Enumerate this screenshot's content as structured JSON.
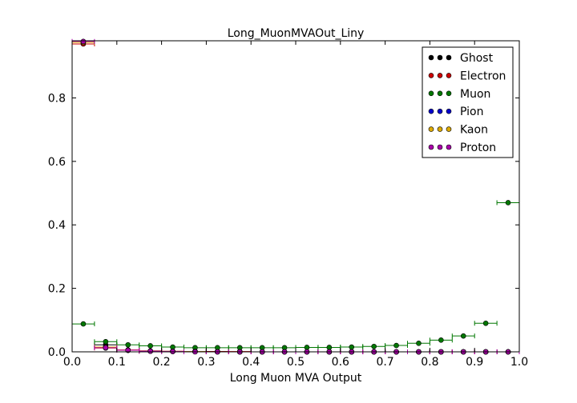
{
  "chart_data": {
    "type": "scatter",
    "title": "Long_MuonMVAOut_Liny",
    "xlabel": "Long Muon MVA Output",
    "ylabel": "",
    "xlim": [
      0.0,
      1.0
    ],
    "ylim": [
      0.0,
      0.98
    ],
    "xticks": [
      "0.0",
      "0.1",
      "0.2",
      "0.3",
      "0.4",
      "0.5",
      "0.6",
      "0.7",
      "0.8",
      "0.9",
      "1.0"
    ],
    "yticks": [
      "0.0",
      "0.2",
      "0.4",
      "0.6",
      "0.8"
    ],
    "legend_position": "top-right",
    "bin_width": 0.05,
    "x": [
      0.025,
      0.075,
      0.125,
      0.175,
      0.225,
      0.275,
      0.325,
      0.375,
      0.425,
      0.475,
      0.525,
      0.575,
      0.625,
      0.675,
      0.725,
      0.775,
      0.825,
      0.875,
      0.925,
      0.975
    ],
    "series": [
      {
        "name": "Ghost",
        "color": "#000000",
        "values": [
          0.975,
          0.022,
          0.005,
          0.002,
          0.001,
          0.001,
          0.001,
          0.0,
          0.0,
          0.0,
          0.0,
          0.0,
          0.0,
          0.0,
          0.0,
          0.0,
          0.0,
          0.0,
          0.0,
          0.0
        ]
      },
      {
        "name": "Electron",
        "color": "#cc0000",
        "values": [
          0.97,
          0.012,
          0.006,
          0.003,
          0.002,
          0.001,
          0.001,
          0.001,
          0.0,
          0.0,
          0.0,
          0.0,
          0.0,
          0.0,
          0.0,
          0.0,
          0.0,
          0.0,
          0.0,
          0.0
        ]
      },
      {
        "name": "Muon",
        "color": "#007700",
        "values": [
          0.088,
          0.032,
          0.022,
          0.019,
          0.015,
          0.013,
          0.013,
          0.013,
          0.013,
          0.013,
          0.014,
          0.014,
          0.015,
          0.017,
          0.02,
          0.027,
          0.037,
          0.05,
          0.09,
          0.47
        ]
      },
      {
        "name": "Pion",
        "color": "#0000cc",
        "values": [
          0.975,
          0.015,
          0.005,
          0.002,
          0.001,
          0.001,
          0.0,
          0.0,
          0.0,
          0.0,
          0.0,
          0.0,
          0.0,
          0.0,
          0.0,
          0.0,
          0.0,
          0.0,
          0.0,
          0.0
        ]
      },
      {
        "name": "Kaon",
        "color": "#ddaa00",
        "values": [
          0.975,
          0.015,
          0.005,
          0.002,
          0.001,
          0.001,
          0.0,
          0.0,
          0.0,
          0.0,
          0.0,
          0.0,
          0.0,
          0.0,
          0.0,
          0.0,
          0.0,
          0.0,
          0.0,
          0.0
        ]
      },
      {
        "name": "Proton",
        "color": "#aa00aa",
        "values": [
          0.978,
          0.013,
          0.005,
          0.002,
          0.001,
          0.0,
          0.0,
          0.0,
          0.0,
          0.0,
          0.0,
          0.0,
          0.0,
          0.0,
          0.0,
          0.0,
          0.0,
          0.0,
          0.0,
          0.0
        ]
      }
    ]
  }
}
